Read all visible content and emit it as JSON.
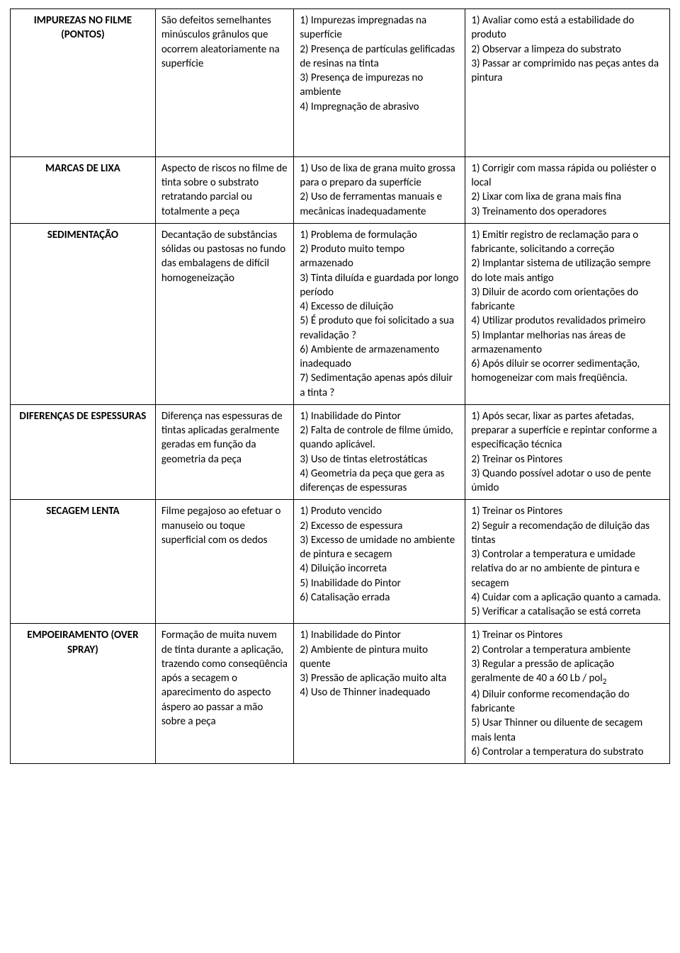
{
  "rows": [
    {
      "title": "IMPUREZAS NO FILME (PONTOS)",
      "desc": "São defeitos semelhantes minúsculos grânulos que ocorrem aleatoriamente na superfície",
      "causes": "1) Impurezas impregnadas na superfície\n2) Presença de partículas gelificadas de resinas na tinta\n3) Presença de impurezas no ambiente\n4) Impregnação de abrasivo",
      "fixes": "1) Avaliar como está a estabilidade do produto\n2) Observar a limpeza do substrato\n3) Passar ar comprimido nas peças antes da pintura",
      "tall": true
    },
    {
      "title": "MARCAS DE LIXA",
      "desc": "Aspecto de riscos no filme de tinta sobre o substrato retratando parcial ou totalmente a peça",
      "causes": "1) Uso de lixa de grana muito grossa para o preparo da superfície\n2) Uso de ferramentas manuais e mecânicas inadequadamente",
      "fixes": "1) Corrigir com massa rápida ou poliéster o local\n2) Lixar com lixa de grana mais fina\n3) Treinamento dos operadores",
      "tall": false
    },
    {
      "title": "SEDIMENTAÇÃO",
      "desc": "Decantação de substâncias sólidas ou pastosas no fundo das embalagens de difícil homogeneização",
      "causes": "1) Problema de formulação\n2) Produto muito tempo armazenado\n3) Tinta diluída e guardada por longo período\n4) Excesso de diluição\n5) É produto que foi solicitado a sua revalidação ?\n6) Ambiente de armazenamento inadequado\n7) Sedimentação apenas após diluir a tinta ?",
      "fixes": "1) Emitir registro de reclamação para o fabricante, solicitando a correção\n2) Implantar sistema de utilização sempre do lote mais antigo\n3) Diluir de acordo com orientações do fabricante\n4) Utilizar produtos revalidados primeiro\n5) Implantar melhorias nas áreas de armazenamento\n6) Após diluir se ocorrer sedimentação, homogeneizar com mais freqüência.",
      "tall": false
    },
    {
      "title": "DIFERENÇAS DE ESPESSURAS",
      "desc": "Diferença nas espessuras de tintas aplicadas geralmente geradas em função da geometria da peça",
      "causes": "1) Inabilidade do Pintor\n2) Falta de controle de filme úmido, quando aplicável.\n3) Uso de tintas eletrostáticas\n4) Geometria da peça que gera as diferenças de espessuras",
      "fixes": "1) Após secar, lixar as partes afetadas, preparar a superfície e repintar conforme a especificação técnica\n2) Treinar os Pintores\n3) Quando possível adotar o uso de pente úmido",
      "tall": false
    },
    {
      "title": "SECAGEM LENTA",
      "desc": "Filme pegajoso ao efetuar o manuseio ou toque superficial com os dedos",
      "causes": "1) Produto vencido\n2) Excesso de espessura\n3) Excesso de umidade no ambiente de pintura e secagem\n4) Diluição incorreta\n5) Inabilidade do Pintor\n6) Catalisação errada",
      "fixes": "1) Treinar os Pintores\n2) Seguir a recomendação de diluição das tintas\n3) Controlar a temperatura e umidade relativa do ar no ambiente de pintura e secagem\n4) Cuidar com a aplicação quanto a camada.\n5) Verificar a catalisação se está correta",
      "tall": false
    },
    {
      "title": "EMPOEIRAMENTO (OVER SPRAY)",
      "desc": "Formação de muita nuvem de tinta durante a aplicação, trazendo como conseqüência após a secagem o aparecimento do aspecto áspero ao passar a mão sobre a peça",
      "causes": "1) Inabilidade do Pintor\n2) Ambiente de pintura muito quente\n3) Pressão de aplicação muito alta\n4) Uso de Thinner inadequado",
      "fixes": "1) Treinar os Pintores\n2) Controlar a temperatura ambiente\n3) Regular a pressão de aplicação geralmente de 40 a 60 Lb / pol2\n4) Diluir conforme recomendação do fabricante\n5) Usar Thinner ou diluente de secagem mais lenta\n6) Controlar a temperatura do substrato",
      "tall": false
    }
  ]
}
